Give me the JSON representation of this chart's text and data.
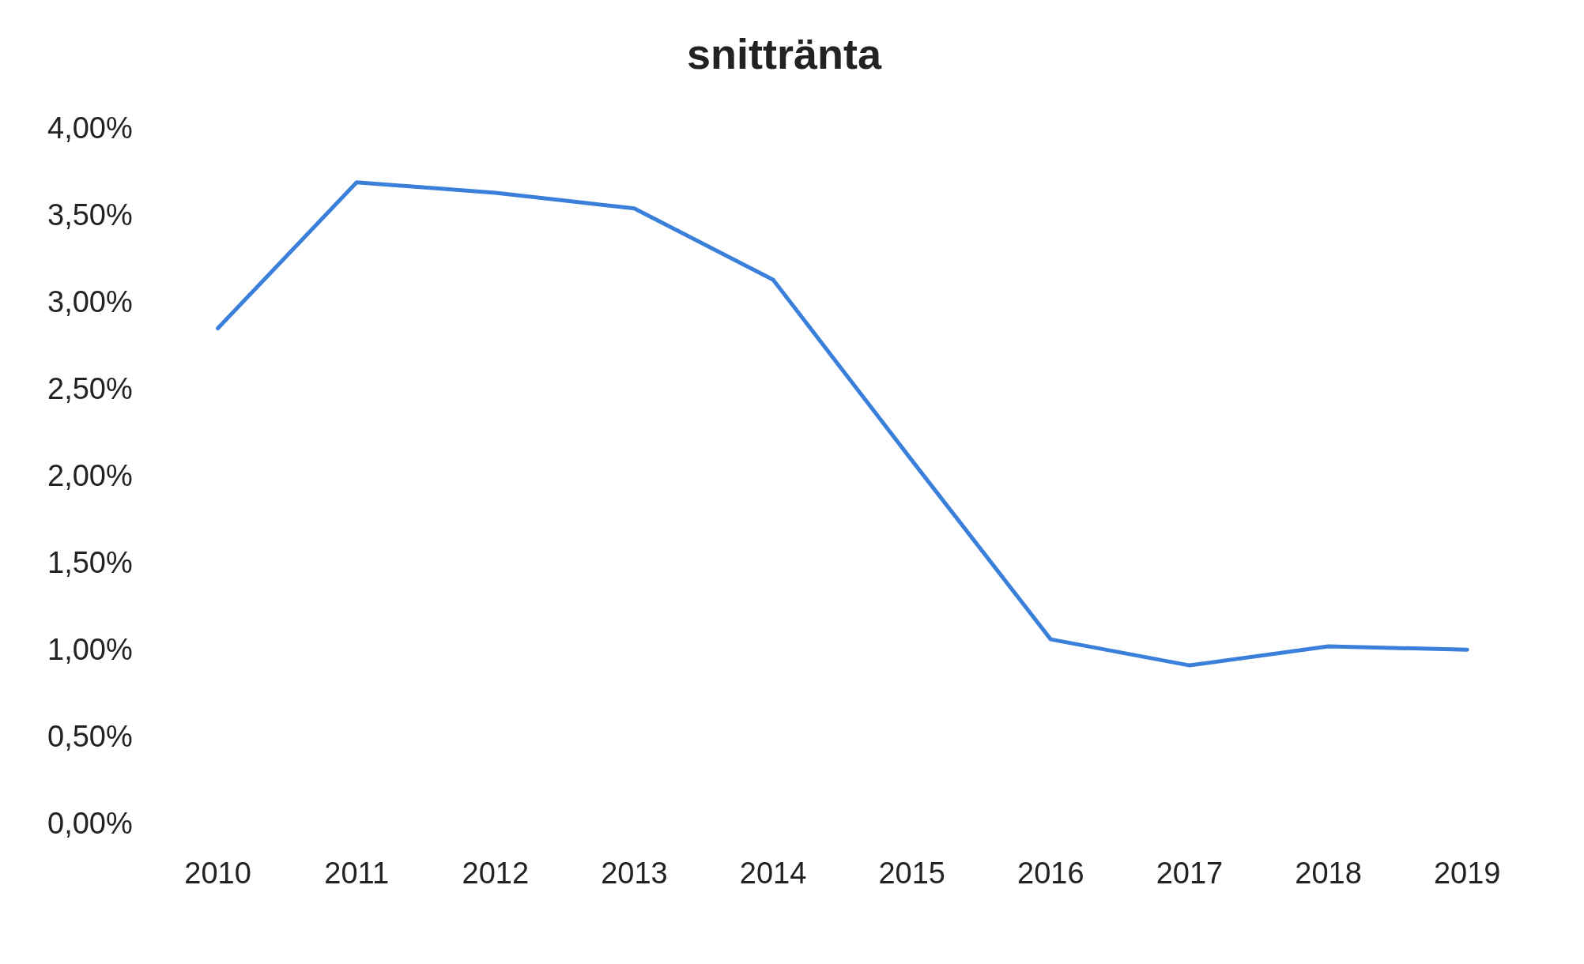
{
  "chart_data": {
    "type": "line",
    "title": "snittränta",
    "categories": [
      "2010",
      "2011",
      "2012",
      "2013",
      "2014",
      "2015",
      "2016",
      "2017",
      "2018",
      "2019"
    ],
    "series": [
      {
        "color": "#3a7fd9",
        "values": [
          2.86,
          3.7,
          3.64,
          3.55,
          3.14,
          2.1,
          1.07,
          0.92,
          1.03,
          1.01
        ]
      }
    ],
    "ylim": [
      0,
      4
    ],
    "yticks": [
      {
        "value": 0,
        "label": "0,00%"
      },
      {
        "value": 0.5,
        "label": "0,50%"
      },
      {
        "value": 1,
        "label": "1,00%"
      },
      {
        "value": 1.5,
        "label": "1,50%"
      },
      {
        "value": 2,
        "label": "2,00%"
      },
      {
        "value": 2.5,
        "label": "2,50%"
      },
      {
        "value": 3,
        "label": "3,00%"
      },
      {
        "value": 3.5,
        "label": "3,50%"
      },
      {
        "value": 4,
        "label": "4,00%"
      }
    ],
    "grid": false,
    "legend": false,
    "marker": "none",
    "line_style": "solid"
  }
}
